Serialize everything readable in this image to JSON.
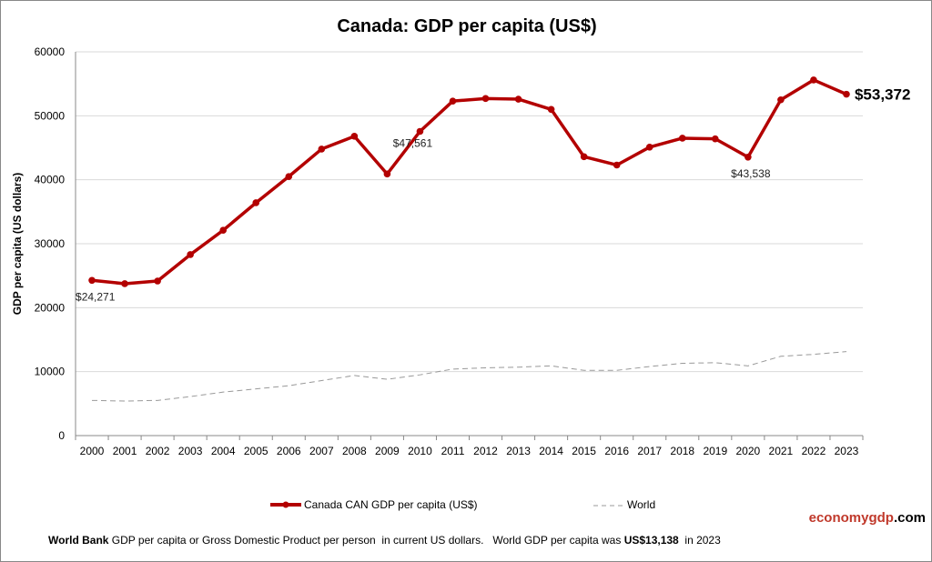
{
  "chart_data": {
    "type": "line",
    "title": "Canada: GDP per capita (US$)",
    "xlabel": "",
    "ylabel": "GDP per capita (US dollars)",
    "ylim": [
      0,
      60000
    ],
    "yticks": [
      0,
      10000,
      20000,
      30000,
      40000,
      50000,
      60000
    ],
    "grid": true,
    "legend": "bottom",
    "categories": [
      "2000",
      "2001",
      "2002",
      "2003",
      "2004",
      "2005",
      "2006",
      "2007",
      "2008",
      "2009",
      "2010",
      "2011",
      "2012",
      "2013",
      "2014",
      "2015",
      "2016",
      "2017",
      "2018",
      "2019",
      "2020",
      "2021",
      "2022",
      "2023"
    ],
    "series": [
      {
        "name": "Canada CAN GDP per capita (US$)",
        "color": "#b30000",
        "style": "solid-markers",
        "values": [
          24271,
          23750,
          24170,
          28300,
          32100,
          36400,
          40500,
          44800,
          46800,
          40900,
          47561,
          52300,
          52700,
          52600,
          51000,
          43600,
          42300,
          45100,
          46500,
          46400,
          43538,
          52500,
          55600,
          53372
        ]
      },
      {
        "name": "World",
        "color": "#999999",
        "style": "dashed",
        "values": [
          5500,
          5400,
          5500,
          6100,
          6800,
          7300,
          7800,
          8600,
          9400,
          8800,
          9500,
          10400,
          10600,
          10700,
          10900,
          10200,
          10200,
          10800,
          11300,
          11400,
          10900,
          12400,
          12700,
          13138
        ]
      }
    ],
    "annotations": [
      {
        "year": "2000",
        "text": "$24,271"
      },
      {
        "year": "2010",
        "text": "$47,561"
      },
      {
        "year": "2020",
        "text": "$43,538"
      },
      {
        "year": "2023",
        "text": "$53,372",
        "emphasis": true
      }
    ]
  },
  "branding": {
    "part1": "economy",
    "part2": "gdp",
    "part3": ".com",
    "color1": "#c0392b",
    "color2": "#000000"
  },
  "footer": {
    "source": "World Bank",
    "text1": " GDP per capita or Gross Domestic Product per person  in current US dollars.   World GDP per capita was ",
    "value": "US$13,138",
    "text2": "  in 2023"
  }
}
